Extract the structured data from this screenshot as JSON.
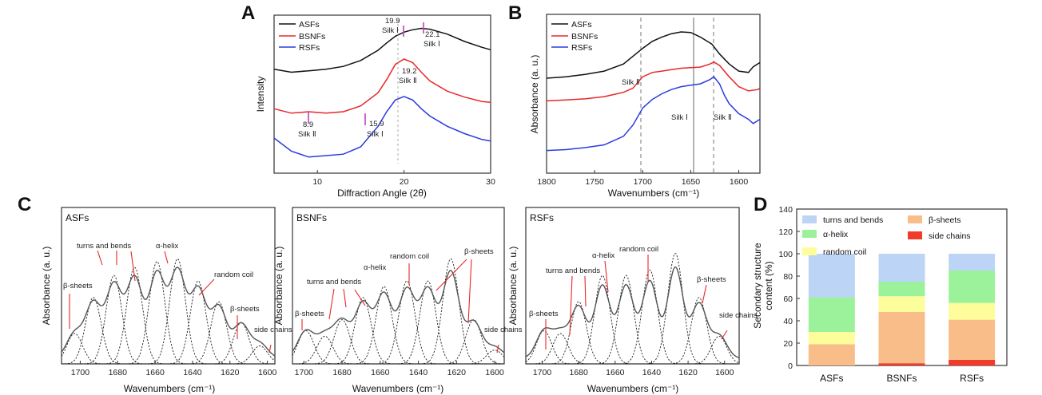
{
  "panels": {
    "A": {
      "letter": "A",
      "xlabel": "Diffraction Angle (2θ)",
      "ylabel": "Intensity",
      "xticks": [
        "10",
        "20",
        "30"
      ],
      "legend": [
        {
          "name": "ASFs",
          "color": "#111111"
        },
        {
          "name": "BSNFs",
          "color": "#e8272b"
        },
        {
          "name": "RSFs",
          "color": "#2a3be0"
        }
      ],
      "annotations": [
        {
          "value": "19.9",
          "label": "Silk Ⅰ"
        },
        {
          "value": "22.1",
          "label": "Silk Ⅰ"
        },
        {
          "value": "19.2",
          "label": "Silk Ⅱ"
        },
        {
          "value": "8.9",
          "label": "Silk Ⅱ"
        },
        {
          "value": "15.9",
          "label": "Silk Ⅰ"
        }
      ]
    },
    "B": {
      "letter": "B",
      "xlabel": "Wavenumbers (cm⁻¹)",
      "ylabel": "Absorbance (a. u.)",
      "xticks": [
        "1800",
        "1750",
        "1700",
        "1650",
        "1600"
      ],
      "legend": [
        {
          "name": "ASFs",
          "color": "#111111"
        },
        {
          "name": "BSNFs",
          "color": "#e8272b"
        },
        {
          "name": "RSFs",
          "color": "#2a3be0"
        }
      ],
      "annotations": [
        {
          "label": "Silk Ⅱ"
        },
        {
          "label": "Silk Ⅰ"
        },
        {
          "label": "Silk Ⅱ"
        }
      ]
    },
    "C": {
      "letter": "C",
      "xlabel": "Wavenumbers (cm⁻¹)",
      "ylabel": "Absorbance (a. u.)",
      "xticks": [
        "1700",
        "1680",
        "1660",
        "1640",
        "1620",
        "1600"
      ],
      "subpanels": [
        {
          "title": "ASFs",
          "labels": [
            "β-sheets",
            "turns and bends",
            "α-helix",
            "random coil",
            "β-sheets",
            "side chains"
          ]
        },
        {
          "title": "BSNFs",
          "labels": [
            "β-sheets",
            "turns and bends",
            "α-helix",
            "random coil",
            "β-sheets",
            "side chains"
          ]
        },
        {
          "title": "RSFs",
          "labels": [
            "β-sheets",
            "turns and bends",
            "α-helix",
            "random coil",
            "β-sheets",
            "side chains"
          ]
        }
      ]
    },
    "D": {
      "letter": "D",
      "ylabel": "Secondary structure content (%)",
      "ylabel_line1": "Secondary structure",
      "ylabel_line2": "content (%)",
      "yticks": [
        "0",
        "20",
        "40",
        "60",
        "80",
        "100",
        "120",
        "140"
      ]
    }
  },
  "chart_data": [
    {
      "type": "line",
      "title": "",
      "xlabel": "Diffraction Angle (2θ)",
      "ylabel": "Intensity",
      "xlim": [
        5,
        30
      ],
      "series": [
        {
          "name": "ASFs",
          "x": [
            5,
            7,
            9,
            11,
            13,
            15,
            17,
            18,
            19,
            20,
            21,
            22,
            23,
            25,
            27,
            29,
            30
          ],
          "y": [
            3.55,
            3.45,
            3.5,
            3.55,
            3.65,
            3.85,
            4.2,
            4.45,
            4.68,
            4.82,
            4.9,
            4.95,
            4.92,
            4.75,
            4.5,
            4.3,
            4.22
          ]
        },
        {
          "name": "BSNFs",
          "x": [
            5,
            7,
            9,
            11,
            13,
            15,
            17,
            18,
            19,
            20,
            21,
            22,
            23,
            25,
            27,
            29,
            30
          ],
          "y": [
            2.2,
            2.05,
            2.1,
            2.05,
            2.1,
            2.3,
            2.75,
            3.2,
            3.72,
            3.9,
            3.78,
            3.45,
            3.15,
            2.8,
            2.6,
            2.45,
            2.42
          ]
        },
        {
          "name": "RSFs",
          "x": [
            5,
            7,
            9,
            11,
            13,
            15,
            17,
            18,
            19,
            20,
            21,
            22,
            23,
            25,
            27,
            29,
            30
          ],
          "y": [
            1.2,
            0.75,
            0.55,
            0.6,
            0.65,
            0.9,
            1.6,
            2.1,
            2.5,
            2.62,
            2.5,
            2.2,
            1.95,
            1.6,
            1.35,
            1.15,
            1.1
          ]
        }
      ]
    },
    {
      "type": "line",
      "title": "",
      "xlabel": "Wavenumbers (cm⁻¹)",
      "ylabel": "Absorbance (a. u.)",
      "xlim": [
        1800,
        1578
      ],
      "series": [
        {
          "name": "ASFs",
          "x": [
            1800,
            1780,
            1760,
            1740,
            1720,
            1700,
            1690,
            1680,
            1670,
            1660,
            1650,
            1640,
            1628,
            1620,
            1610,
            1600,
            1590,
            1585,
            1578
          ],
          "y": [
            3.35,
            3.4,
            3.48,
            3.6,
            3.85,
            4.4,
            4.65,
            4.8,
            4.92,
            4.98,
            4.96,
            4.8,
            4.55,
            4.2,
            3.85,
            3.6,
            3.55,
            3.75,
            3.9
          ]
        },
        {
          "name": "BSNFs",
          "x": [
            1800,
            1780,
            1760,
            1740,
            1720,
            1710,
            1700,
            1690,
            1680,
            1670,
            1660,
            1650,
            1640,
            1630,
            1626,
            1620,
            1610,
            1600,
            1590,
            1580,
            1578
          ],
          "y": [
            2.55,
            2.58,
            2.62,
            2.7,
            2.85,
            3.0,
            3.4,
            3.55,
            3.6,
            3.65,
            3.7,
            3.72,
            3.74,
            3.85,
            3.92,
            3.8,
            3.4,
            3.05,
            2.9,
            2.95,
            3.0
          ]
        },
        {
          "name": "RSFs",
          "x": [
            1800,
            1780,
            1760,
            1740,
            1720,
            1710,
            1700,
            1690,
            1680,
            1670,
            1660,
            1650,
            1640,
            1630,
            1626,
            1620,
            1615,
            1610,
            1600,
            1590,
            1585,
            1578
          ],
          "y": [
            0.8,
            0.83,
            0.9,
            1.0,
            1.3,
            1.7,
            2.3,
            2.6,
            2.8,
            2.95,
            3.05,
            3.1,
            3.15,
            3.3,
            3.4,
            3.15,
            2.75,
            2.45,
            2.1,
            1.9,
            1.75,
            1.9
          ]
        }
      ]
    },
    {
      "type": "line",
      "title": "ASFs",
      "xlabel": "Wavenumbers (cm⁻¹)",
      "ylabel": "Absorbance (a. u.)",
      "xlim": [
        1710,
        1596
      ],
      "peaks": [
        {
          "center": 1703,
          "height": 0.22,
          "width": 4.2
        },
        {
          "center": 1693,
          "height": 0.48,
          "width": 4.2
        },
        {
          "center": 1682,
          "height": 0.64,
          "width": 4.2
        },
        {
          "center": 1671,
          "height": 0.7,
          "width": 4.2
        },
        {
          "center": 1659,
          "height": 0.74,
          "width": 4.2
        },
        {
          "center": 1648,
          "height": 0.76,
          "width": 4.2
        },
        {
          "center": 1637,
          "height": 0.6,
          "width": 4.2
        },
        {
          "center": 1626,
          "height": 0.45,
          "width": 4.2
        },
        {
          "center": 1614,
          "height": 0.3,
          "width": 4.2
        },
        {
          "center": 1604,
          "height": 0.13,
          "width": 4.2
        }
      ]
    },
    {
      "type": "line",
      "title": "BSNFs",
      "xlabel": "Wavenumbers (cm⁻¹)",
      "ylabel": "Absorbance (a. u.)",
      "xlim": [
        1706,
        1595
      ],
      "peaks": [
        {
          "center": 1699,
          "height": 0.24,
          "width": 4.2
        },
        {
          "center": 1689,
          "height": 0.2,
          "width": 4.2
        },
        {
          "center": 1680,
          "height": 0.32,
          "width": 4.2
        },
        {
          "center": 1669,
          "height": 0.48,
          "width": 4.2
        },
        {
          "center": 1658,
          "height": 0.56,
          "width": 4.2
        },
        {
          "center": 1646,
          "height": 0.6,
          "width": 4.2
        },
        {
          "center": 1635,
          "height": 0.6,
          "width": 4.2
        },
        {
          "center": 1623,
          "height": 0.76,
          "width": 4.2
        },
        {
          "center": 1611,
          "height": 0.32,
          "width": 4.2
        },
        {
          "center": 1600,
          "height": 0.1,
          "width": 4.2
        }
      ]
    },
    {
      "type": "line",
      "title": "RSFs",
      "xlabel": "Wavenumbers (cm⁻¹)",
      "ylabel": "Absorbance (a. u.)",
      "xlim": [
        1709,
        1592
      ],
      "peaks": [
        {
          "center": 1699,
          "height": 0.24,
          "width": 4.2
        },
        {
          "center": 1690,
          "height": 0.22,
          "width": 4.2
        },
        {
          "center": 1680,
          "height": 0.45,
          "width": 4.2
        },
        {
          "center": 1667,
          "height": 0.64,
          "width": 4.2
        },
        {
          "center": 1654,
          "height": 0.64,
          "width": 4.2
        },
        {
          "center": 1641,
          "height": 0.68,
          "width": 4.2
        },
        {
          "center": 1627,
          "height": 0.8,
          "width": 4.2
        },
        {
          "center": 1614,
          "height": 0.48,
          "width": 4.2
        },
        {
          "center": 1603,
          "height": 0.2,
          "width": 4.2
        }
      ]
    },
    {
      "type": "bar",
      "title": "",
      "ylabel": "Secondary structure content (%)",
      "categories": [
        "ASFs",
        "BSNFs",
        "RSFs"
      ],
      "stacked": true,
      "ylim": [
        0,
        140
      ],
      "series": [
        {
          "name": "side chains",
          "color": "#f03a2a",
          "values": [
            0,
            2,
            5
          ]
        },
        {
          "name": "β-sheets",
          "color": "#f9bd8a",
          "values": [
            19,
            46,
            36
          ]
        },
        {
          "name": "random coil",
          "color": "#fdfd9b",
          "values": [
            11,
            14,
            15
          ]
        },
        {
          "name": "α-helix",
          "color": "#9bf29a",
          "values": [
            31,
            13,
            29
          ]
        },
        {
          "name": "turns and bends",
          "color": "#bcd4f5",
          "values": [
            39,
            25,
            15
          ]
        }
      ]
    }
  ]
}
